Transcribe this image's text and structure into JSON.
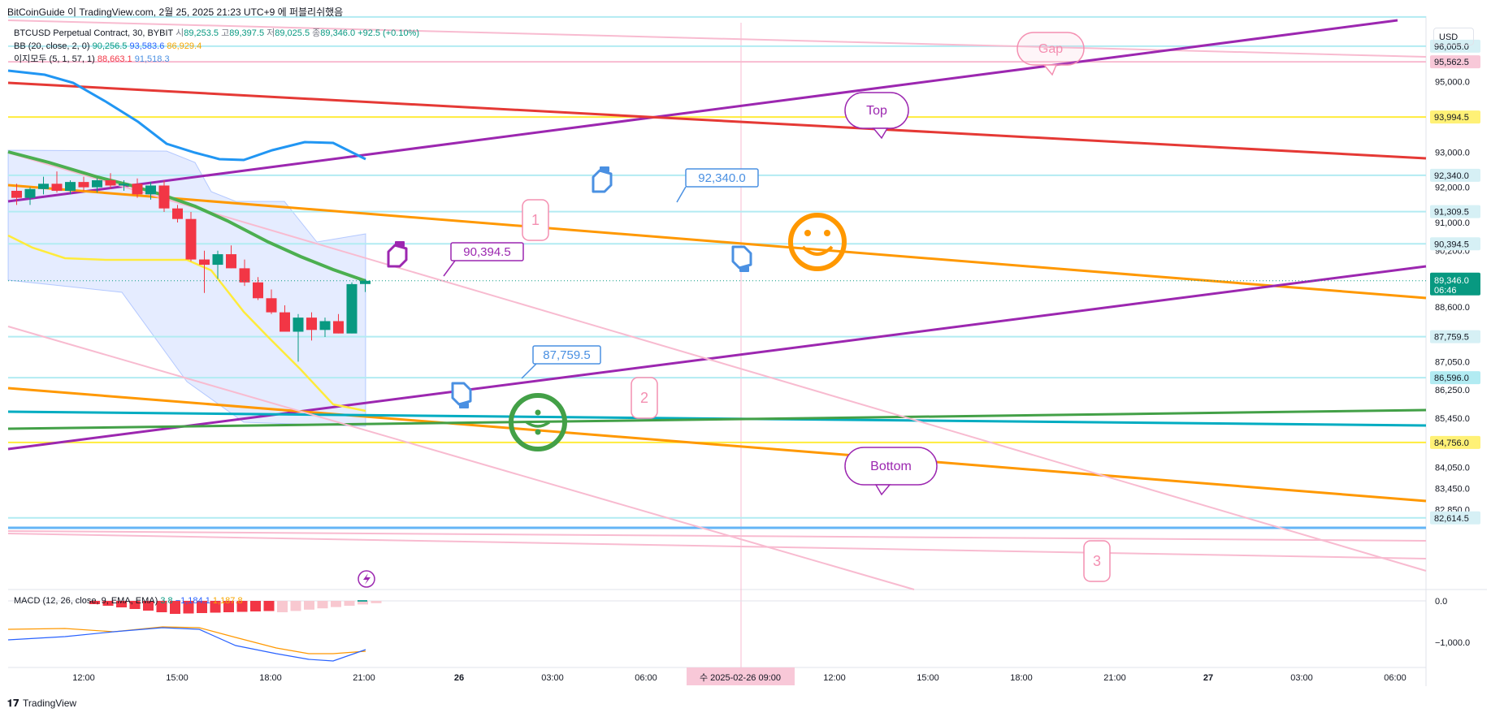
{
  "header": {
    "text": "BitCoinGuide 이 TradingView.com, 2월 25, 2025 21:23 UTC+9 에 퍼블리쉬했음"
  },
  "footer": {
    "brand": "TradingView",
    "logo": "tradingview-logo"
  },
  "currency": "USD",
  "legend": {
    "symbol": "BTCUSD Perpetual Contract, 30, BYBIT",
    "o_label": "시",
    "o": "89,253.5",
    "h_label": "고",
    "h": "89,397.5",
    "l_label": "저",
    "l": "89,025.5",
    "c_label": "종",
    "c": "89,346.0",
    "chg": "+92.5 (+0.10%)",
    "bb_label": "BB (20, close, 2, 0)",
    "bb1": "90,256.5",
    "bb2": "93,583.6",
    "bb3": "86,929.4",
    "ind2_label": "이지모두 (5, 1, 57, 1)",
    "ind2a": "88,663.1",
    "ind2b": "91,518.3",
    "macd_label": "MACD (12, 26, close, 9, EMA, EMA)",
    "macd1": "3.8",
    "macd2": "−1,184.1",
    "macd3": "1,187.8"
  },
  "colors": {
    "up": "#089981",
    "down": "#f23645",
    "bb_fill": "#2962ff",
    "purple": "#9c27b0",
    "orange": "#ff9800"
  },
  "chart_data": {
    "type": "candlestick",
    "y_range": [
      82614.5,
      96500
    ],
    "x_ticks": [
      "12:00",
      "15:00",
      "18:00",
      "21:00",
      "26",
      "03:00",
      "06:00",
      "09:00",
      "12:00",
      "15:00",
      "18:00",
      "21:00",
      "27",
      "03:00",
      "06:00"
    ],
    "x_crosshair_label": "수 2025-02-26  09:00",
    "y_ticks": [
      "95,000.0",
      "93,000.0",
      "92,000.0",
      "91,000.0",
      "90,200.0",
      "88,600.0",
      "87,050.0",
      "86,250.0",
      "85,450.0",
      "84,050.0",
      "83,450.0",
      "82,850.0"
    ],
    "price_tags": [
      {
        "label": "96,005.0",
        "value": 96005.0,
        "bg": "#d6f0f5"
      },
      {
        "label": "95,562.5",
        "value": 95562.5,
        "bg": "#f8c8d8"
      },
      {
        "label": "93,994.5",
        "value": 93994.5,
        "bg": "#fff176"
      },
      {
        "label": "92,340.0",
        "value": 92340.0,
        "bg": "#d6f0f5"
      },
      {
        "label": "91,309.5",
        "value": 91309.5,
        "bg": "#d6f0f5"
      },
      {
        "label": "90,394.5",
        "value": 90394.5,
        "bg": "#d6f0f5"
      },
      {
        "label": "87,759.5",
        "value": 87759.5,
        "bg": "#d6f0f5"
      },
      {
        "label": "86,596.0",
        "value": 86596.0,
        "bg": "#b2ebf2"
      },
      {
        "label": "84,756.0",
        "value": 84756.0,
        "bg": "#fff176"
      },
      {
        "label": "82,614.5",
        "value": 82614.5,
        "bg": "#d6f0f5"
      }
    ],
    "last_price": {
      "label": "89,346.0",
      "timer": "06:46",
      "value": 89346.0
    },
    "candles": [
      {
        "o": 91900,
        "h": 92100,
        "l": 91500,
        "c": 91700
      },
      {
        "o": 91700,
        "h": 92000,
        "l": 91500,
        "c": 91950
      },
      {
        "o": 91950,
        "h": 92300,
        "l": 91800,
        "c": 92100
      },
      {
        "o": 92100,
        "h": 92450,
        "l": 91850,
        "c": 91900
      },
      {
        "o": 91900,
        "h": 92200,
        "l": 91800,
        "c": 92150
      },
      {
        "o": 92150,
        "h": 92300,
        "l": 91900,
        "c": 92000
      },
      {
        "o": 92000,
        "h": 92250,
        "l": 91850,
        "c": 92200
      },
      {
        "o": 92200,
        "h": 92400,
        "l": 91950,
        "c": 92050
      },
      {
        "o": 92050,
        "h": 92200,
        "l": 91900,
        "c": 92100
      },
      {
        "o": 92100,
        "h": 92250,
        "l": 91700,
        "c": 91800
      },
      {
        "o": 91800,
        "h": 92150,
        "l": 91650,
        "c": 92050
      },
      {
        "o": 92050,
        "h": 92200,
        "l": 91300,
        "c": 91400
      },
      {
        "o": 91400,
        "h": 91500,
        "l": 91000,
        "c": 91100
      },
      {
        "o": 91100,
        "h": 91300,
        "l": 89900,
        "c": 89950
      },
      {
        "o": 89950,
        "h": 90200,
        "l": 89000,
        "c": 89800
      },
      {
        "o": 89800,
        "h": 90200,
        "l": 89400,
        "c": 90100
      },
      {
        "o": 90100,
        "h": 90350,
        "l": 89700,
        "c": 89700
      },
      {
        "o": 89700,
        "h": 89950,
        "l": 89200,
        "c": 89300
      },
      {
        "o": 89300,
        "h": 89450,
        "l": 88800,
        "c": 88850
      },
      {
        "o": 88850,
        "h": 89100,
        "l": 88400,
        "c": 88450
      },
      {
        "o": 88450,
        "h": 88650,
        "l": 87900,
        "c": 87900
      },
      {
        "o": 87900,
        "h": 88400,
        "l": 87050,
        "c": 88300
      },
      {
        "o": 88300,
        "h": 88450,
        "l": 87650,
        "c": 87950
      },
      {
        "o": 87950,
        "h": 88300,
        "l": 87750,
        "c": 88200
      },
      {
        "o": 88200,
        "h": 88400,
        "l": 87850,
        "c": 87850
      },
      {
        "o": 87850,
        "h": 89300,
        "l": 87850,
        "c": 89250
      },
      {
        "o": 89253.5,
        "h": 89397.5,
        "l": 89025.5,
        "c": 89346.0
      }
    ],
    "annotations": [
      {
        "text": "Gap",
        "color": "#f48fb1"
      },
      {
        "text": "Top",
        "color": "#9c27b0"
      },
      {
        "text": "Bottom",
        "color": "#9c27b0"
      },
      {
        "text": "92,340.0",
        "color": "#4a90e2"
      },
      {
        "text": "90,394.5",
        "color": "#9c27b0"
      },
      {
        "text": "87,759.5",
        "color": "#4a90e2"
      },
      {
        "text": "1",
        "color": "#f48fb1"
      },
      {
        "text": "2",
        "color": "#f48fb1"
      },
      {
        "text": "3",
        "color": "#f48fb1"
      }
    ],
    "macd_ticks": [
      "0.0",
      "−1,000.0"
    ]
  }
}
